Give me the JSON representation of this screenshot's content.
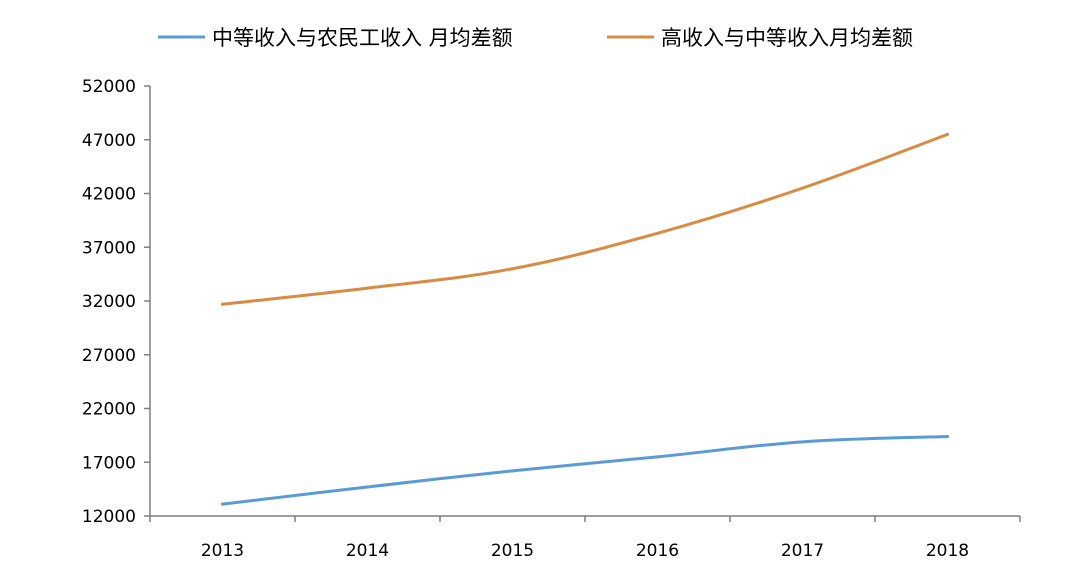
{
  "chart_data": {
    "type": "line",
    "title": "",
    "xlabel": "",
    "ylabel": "",
    "categories": [
      "2013",
      "2014",
      "2015",
      "2016",
      "2017",
      "2018"
    ],
    "ylim": [
      12000,
      52000
    ],
    "yticks": [
      12000,
      17000,
      22000,
      27000,
      32000,
      37000,
      42000,
      47000,
      52000
    ],
    "grid": false,
    "legend_position": "top",
    "series": [
      {
        "name": "中等收入与农民工收入 月均差额",
        "color": "#5b9bd5",
        "values": [
          13100,
          14700,
          16200,
          17500,
          18900,
          19400
        ]
      },
      {
        "name": "高收入与中等收入月均差额",
        "color": "#d98b43",
        "values": [
          31700,
          33200,
          35000,
          38300,
          42500,
          47500
        ]
      }
    ]
  }
}
